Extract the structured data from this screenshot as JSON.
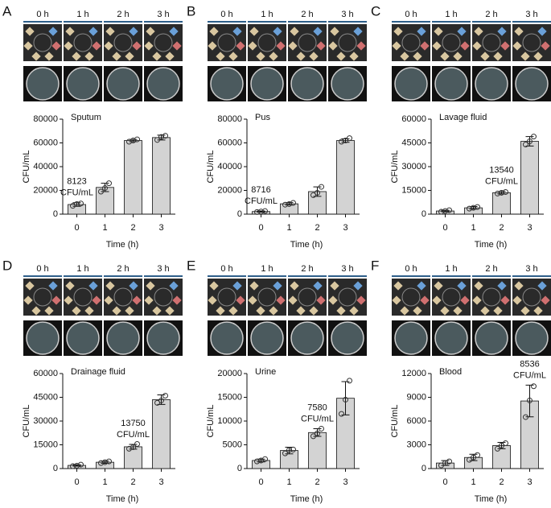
{
  "chart_data": [
    {
      "type": "bar",
      "panel": "A",
      "image_labels": [
        "0 h",
        "1 h",
        "2 h",
        "3 h"
      ],
      "title": "Sputum",
      "ylabel": "CFU/mL",
      "xlabel": "Time (h)",
      "annotation": [
        "8123",
        "CFU/mL"
      ],
      "categories": [
        "0",
        "1",
        "2",
        "3"
      ],
      "values": [
        8123,
        22500,
        62000,
        64500
      ],
      "errors": [
        1500,
        3500,
        1000,
        2000
      ],
      "points": [
        [
          7000,
          8500,
          9000
        ],
        [
          19000,
          22000,
          26000
        ],
        [
          61000,
          62000,
          63000
        ],
        [
          62500,
          65000,
          66000
        ]
      ],
      "color": "#d3d3d3",
      "ylim": [
        0,
        80000
      ],
      "yticks": [
        0,
        20000,
        40000,
        60000,
        80000
      ]
    },
    {
      "type": "bar",
      "panel": "B",
      "image_labels": [
        "0 h",
        "1 h",
        "2 h",
        "3 h"
      ],
      "title": "Pus",
      "ylabel": "CFU/mL",
      "xlabel": "Time (h)",
      "annotation": [
        "8716",
        "CFU/mL"
      ],
      "categories": [
        "0",
        "1",
        "2",
        "3"
      ],
      "values": [
        2200,
        8716,
        19000,
        62000
      ],
      "errors": [
        500,
        1000,
        4000,
        1500
      ],
      "points": [
        [
          1800,
          2200,
          2600
        ],
        [
          8000,
          8500,
          9500
        ],
        [
          16000,
          18000,
          23000
        ],
        [
          61000,
          62000,
          64000
        ]
      ],
      "color": "#d3d3d3",
      "ylim": [
        0,
        80000
      ],
      "yticks": [
        0,
        20000,
        40000,
        60000,
        80000
      ]
    },
    {
      "type": "bar",
      "panel": "C",
      "image_labels": [
        "0 h",
        "1 h",
        "2 h",
        "3 h"
      ],
      "title": "Lavage fluid",
      "ylabel": "CFU/mL",
      "xlabel": "Time (h)",
      "annotation": [
        "13540",
        "CFU/mL"
      ],
      "categories": [
        "0",
        "1",
        "2",
        "3"
      ],
      "values": [
        2000,
        4000,
        13540,
        46000
      ],
      "errors": [
        500,
        800,
        800,
        3000
      ],
      "points": [
        [
          1500,
          2000,
          2500
        ],
        [
          3500,
          4000,
          4500
        ],
        [
          13000,
          13500,
          14000
        ],
        [
          44000,
          46000,
          49000
        ]
      ],
      "color": "#d3d3d3",
      "ylim": [
        0,
        60000
      ],
      "yticks": [
        0,
        15000,
        30000,
        45000,
        60000
      ]
    },
    {
      "type": "bar",
      "panel": "D",
      "image_labels": [
        "0 h",
        "1 h",
        "2 h",
        "3 h"
      ],
      "title": "Drainage fluid",
      "ylabel": "CFU/mL",
      "xlabel": "Time (h)",
      "annotation": [
        "13750",
        "CFU/mL"
      ],
      "categories": [
        "0",
        "1",
        "2",
        "3"
      ],
      "values": [
        2000,
        4000,
        13750,
        43500
      ],
      "errors": [
        500,
        700,
        1500,
        3000
      ],
      "points": [
        [
          1500,
          1800,
          2500
        ],
        [
          3500,
          4000,
          4500
        ],
        [
          12500,
          13500,
          15500
        ],
        [
          41500,
          43000,
          46000
        ]
      ],
      "color": "#d3d3d3",
      "ylim": [
        0,
        60000
      ],
      "yticks": [
        0,
        15000,
        30000,
        45000,
        60000
      ]
    },
    {
      "type": "bar",
      "panel": "E",
      "image_labels": [
        "0 h",
        "1 h",
        "2 h",
        "3 h"
      ],
      "title": "Urine",
      "ylabel": "CFU/mL",
      "xlabel": "Time (h)",
      "annotation": [
        "7580",
        "CFU/mL"
      ],
      "categories": [
        "0",
        "1",
        "2",
        "3"
      ],
      "values": [
        1700,
        3800,
        7580,
        14800
      ],
      "errors": [
        300,
        700,
        800,
        3500
      ],
      "points": [
        [
          1500,
          1700,
          2000
        ],
        [
          3200,
          3900,
          4000
        ],
        [
          6800,
          7400,
          8400
        ],
        [
          11500,
          14500,
          18500
        ]
      ],
      "color": "#d3d3d3",
      "ylim": [
        0,
        20000
      ],
      "yticks": [
        0,
        5000,
        10000,
        15000,
        20000
      ]
    },
    {
      "type": "bar",
      "panel": "F",
      "image_labels": [
        "0 h",
        "1 h",
        "2 h",
        "3 h"
      ],
      "title": "Blood",
      "ylabel": "CFU/mL",
      "xlabel": "Time (h)",
      "annotation": [
        "8536",
        "CFU/mL"
      ],
      "categories": [
        "0",
        "1",
        "2",
        "3"
      ],
      "values": [
        700,
        1400,
        2900,
        8536
      ],
      "errors": [
        300,
        400,
        400,
        2000
      ],
      "points": [
        [
          400,
          700,
          900
        ],
        [
          1100,
          1400,
          1700
        ],
        [
          2500,
          2900,
          3200
        ],
        [
          6500,
          8600,
          10400
        ]
      ],
      "color": "#d3d3d3",
      "ylim": [
        0,
        12000
      ],
      "yticks": [
        0,
        3000,
        6000,
        9000,
        12000
      ]
    }
  ]
}
